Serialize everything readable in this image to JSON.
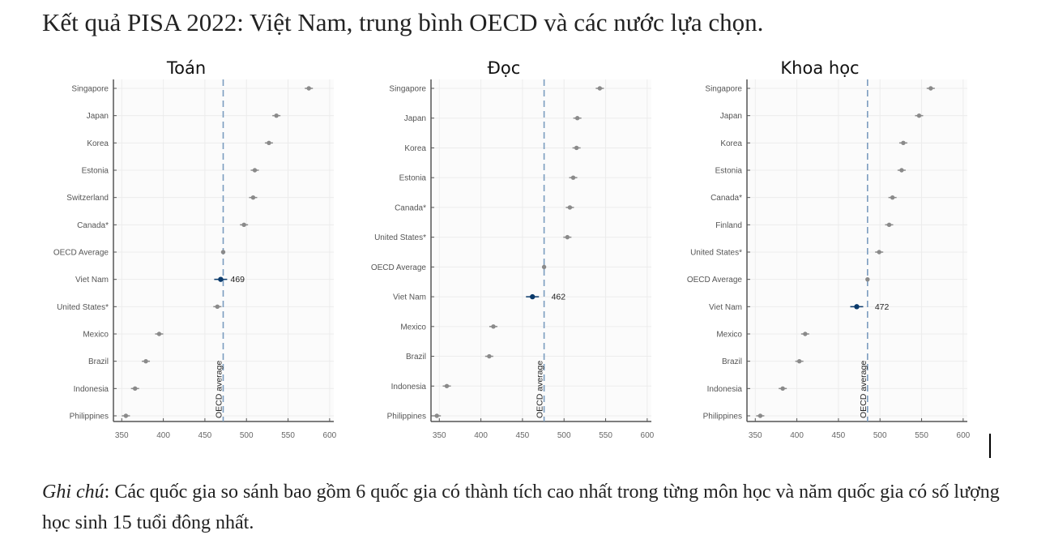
{
  "page": {
    "title": "Kết quả PISA 2022: Việt Nam, trung bình OECD và các nước lựa chọn.",
    "caption_label": "Ghi chú",
    "caption_text": ": Các quốc gia so sánh bao gồm 6 quốc gia có thành tích cao nhất trong từng môn học và năm quốc gia có số lượng học sinh 15 tuổi đông nhất."
  },
  "colors": {
    "dot": "#8a8a8a",
    "highlight": "#0b3a6b",
    "oecd_line": "#7a9cbf",
    "grid": "#ececec",
    "axis": "#555555"
  },
  "chart_data": [
    {
      "type": "scatter",
      "title": "Toán",
      "xlabel": "",
      "ylabel": "",
      "xlim": [
        340,
        605
      ],
      "xticks": [
        350,
        400,
        450,
        500,
        550,
        600
      ],
      "grid": true,
      "reference_line": {
        "label": "OECD average",
        "value": 472
      },
      "highlight": {
        "category": "Viet Nam",
        "label": "469"
      },
      "categories": [
        "Singapore",
        "Japan",
        "Korea",
        "Estonia",
        "Switzerland",
        "Canada*",
        "OECD Average",
        "Viet Nam",
        "United States*",
        "Mexico",
        "Brazil",
        "Indonesia",
        "Philippines"
      ],
      "values": [
        575,
        536,
        527,
        510,
        508,
        497,
        472,
        469,
        465,
        395,
        379,
        366,
        355
      ]
    },
    {
      "type": "scatter",
      "title": "Đọc",
      "xlabel": "",
      "ylabel": "",
      "xlim": [
        340,
        605
      ],
      "xticks": [
        350,
        400,
        450,
        500,
        550,
        600
      ],
      "grid": true,
      "reference_line": {
        "label": "OECD average",
        "value": 476
      },
      "highlight": {
        "category": "Viet Nam",
        "label": "462"
      },
      "categories": [
        "Singapore",
        "Japan",
        "Korea",
        "Estonia",
        "Canada*",
        "United States*",
        "OECD Average",
        "Viet Nam",
        "Mexico",
        "Brazil",
        "Indonesia",
        "Philippines"
      ],
      "values": [
        543,
        516,
        515,
        511,
        507,
        504,
        476,
        462,
        415,
        410,
        359,
        347
      ]
    },
    {
      "type": "scatter",
      "title": "Khoa học",
      "xlabel": "",
      "ylabel": "",
      "xlim": [
        340,
        605
      ],
      "xticks": [
        350,
        400,
        450,
        500,
        550,
        600
      ],
      "grid": true,
      "reference_line": {
        "label": "OECD average",
        "value": 485
      },
      "highlight": {
        "category": "Viet Nam",
        "label": "472"
      },
      "categories": [
        "Singapore",
        "Japan",
        "Korea",
        "Estonia",
        "Canada*",
        "Finland",
        "United States*",
        "OECD Average",
        "Viet Nam",
        "Mexico",
        "Brazil",
        "Indonesia",
        "Philippines"
      ],
      "values": [
        561,
        547,
        528,
        526,
        515,
        511,
        499,
        485,
        472,
        410,
        403,
        383,
        356
      ]
    }
  ]
}
